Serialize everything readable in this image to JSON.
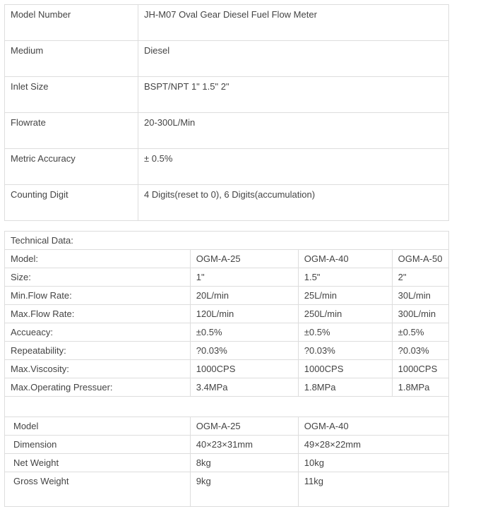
{
  "spec": {
    "rows": [
      {
        "label": "Model Number",
        "value": "JH-M07   Oval Gear  Diesel Fuel Flow Meter"
      },
      {
        "label": "Medium",
        "value": "Diesel"
      },
      {
        "label": "Inlet Size",
        "value": "BSPT/NPT 1\" 1.5\" 2\""
      },
      {
        "label": "Flowrate",
        "value": "20-300L/Min"
      },
      {
        "label": "Metric Accuracy",
        "value": "± 0.5%"
      },
      {
        "label": "Counting Digit",
        "value": "4 Digits(reset to 0), 6 Digits(accumulation)"
      }
    ]
  },
  "tech": {
    "title": "Technical Data:",
    "columns": [
      "Model:",
      "OGM-A-25",
      "OGM-A-40",
      "OGM-A-50"
    ],
    "rows": [
      {
        "label": "Size:",
        "a": "1\"",
        "b": "1.5\"",
        "c": "2\""
      },
      {
        "label": "Min.Flow Rate:",
        "a": "20L/min",
        "b": "25L/min",
        "c": "30L/min"
      },
      {
        "label": "Max.Flow Rate:",
        "a": "120L/min",
        "b": "250L/min",
        "c": "300L/min"
      },
      {
        "label": "Accueacy:",
        "a": "±0.5%",
        "b": "±0.5%",
        "c": "±0.5%"
      },
      {
        "label": "Repeatability:",
        "a": "?0.03%",
        "b": "?0.03%",
        "c": "?0.03%"
      },
      {
        "label": "Max.Viscosity:",
        "a": "1000CPS",
        "b": "1000CPS",
        "c": "1000CPS"
      },
      {
        "label": "Max.Operating Pressuer:",
        "a": "3.4MPa",
        "b": "1.8MPa",
        "c": "1.8MPa"
      }
    ]
  },
  "dim": {
    "columns": [
      "Model",
      "OGM-A-25",
      "OGM-A-40"
    ],
    "rows": [
      {
        "label": "Dimension",
        "a": "40×23×31mm",
        "b": "49×28×22mm"
      },
      {
        "label": "Net Weight",
        "a": "8kg",
        "b": "10kg"
      },
      {
        "label": "Gross Weight",
        "a": "9kg",
        "b": "11kg"
      }
    ]
  },
  "colors": {
    "border": "#dddddd",
    "text": "#444444",
    "background": "#ffffff"
  }
}
